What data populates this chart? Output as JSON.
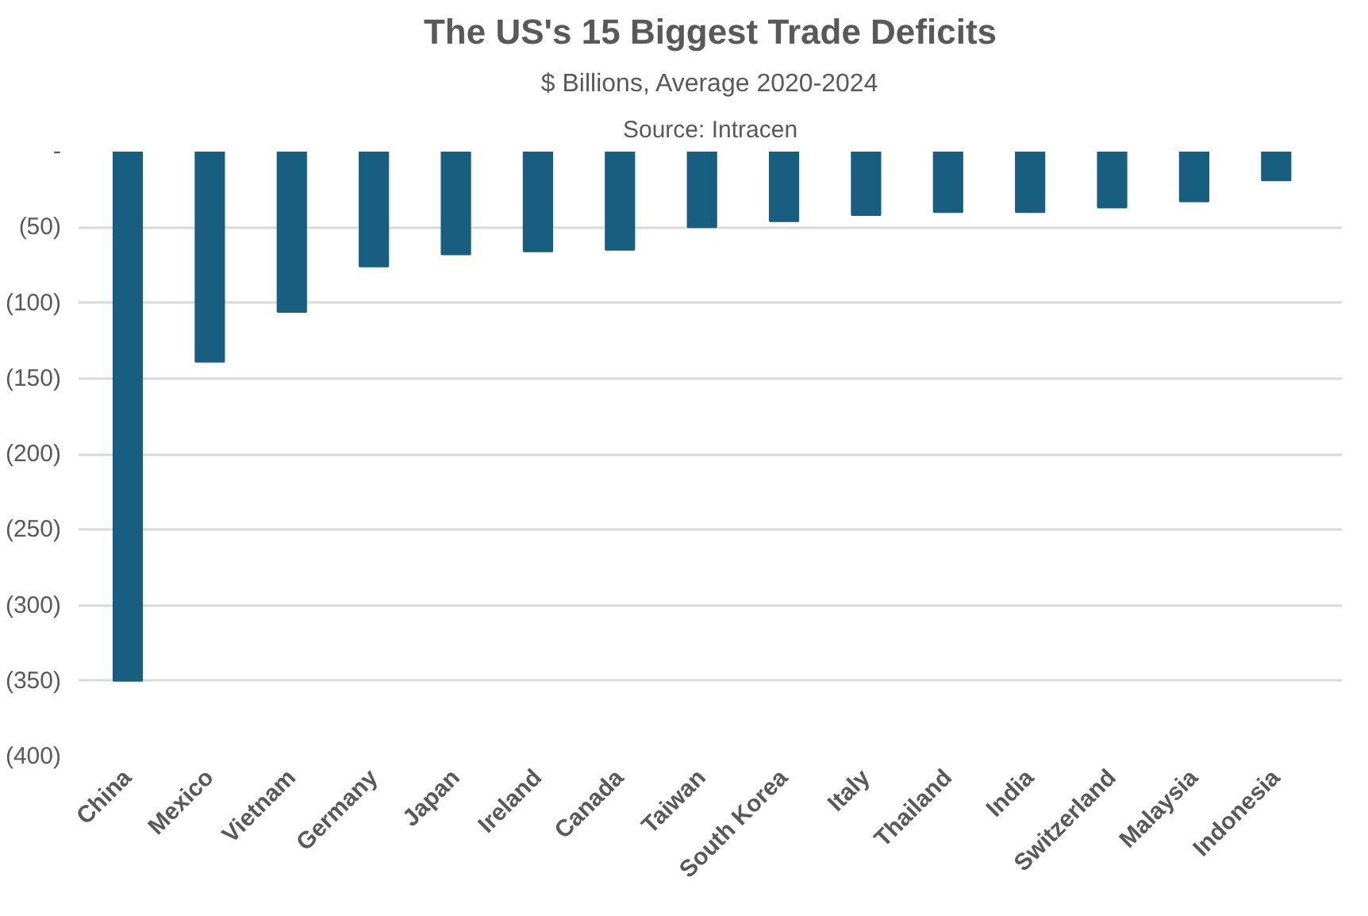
{
  "chart_data": {
    "type": "bar",
    "title": "The US's 15 Biggest Trade Deficits",
    "subtitle": "$ Billions, Average 2020-2024",
    "annotations": [
      "Source: Intracen"
    ],
    "categories": [
      "China",
      "Mexico",
      "Vietnam",
      "Germany",
      "Japan",
      "Ireland",
      "Canada",
      "Taiwan",
      "South Korea",
      "Italy",
      "Thailand",
      "India",
      "Switzerland",
      "Malaysia",
      "Indonesia"
    ],
    "values": [
      -350,
      -139,
      -106,
      -76,
      -68,
      -66,
      -65,
      -50,
      -46,
      -42,
      -40,
      -40,
      -37,
      -33,
      -19
    ],
    "color": "#175e80",
    "ylim": [
      -400,
      0
    ],
    "yticks": [
      {
        "value": 0,
        "label": "-"
      },
      {
        "value": -50,
        "label": "(50)"
      },
      {
        "value": -100,
        "label": "(100)"
      },
      {
        "value": -150,
        "label": "(150)"
      },
      {
        "value": -200,
        "label": "(200)"
      },
      {
        "value": -250,
        "label": "(250)"
      },
      {
        "value": -300,
        "label": "(300)"
      },
      {
        "value": -350,
        "label": "(350)"
      },
      {
        "value": -400,
        "label": "(400)"
      }
    ],
    "grid": "y"
  }
}
